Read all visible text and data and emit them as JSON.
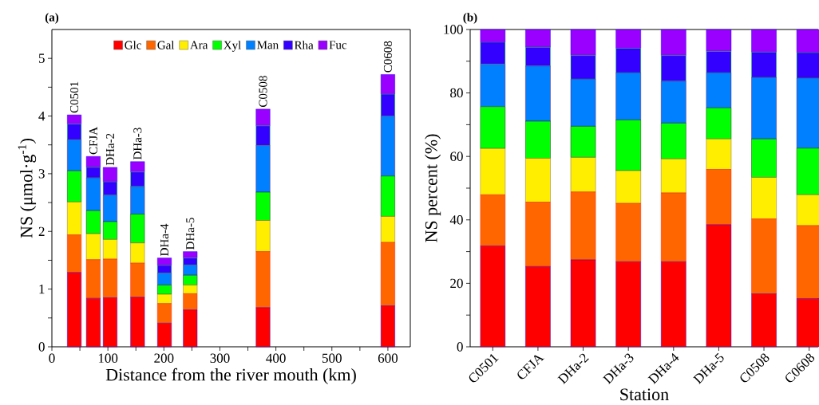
{
  "chart_data": [
    {
      "type": "bar",
      "title": "(a)",
      "xlabel": "Distance from the river mouth (km)",
      "ylabel": "NS (μmol·g$^{-1}$)",
      "stacked": true,
      "legend": "top",
      "x": [
        40,
        74,
        104,
        153,
        201,
        247,
        377,
        600
      ],
      "xlim": [
        0,
        640
      ],
      "xticks": [
        0,
        {
          "value": 50,
          "label": null
        },
        100,
        {
          "value": 150,
          "label": null
        },
        200,
        {
          "value": 250,
          "label": null
        },
        300,
        {
          "value": 350,
          "label": null
        },
        400,
        {
          "value": 450,
          "label": null
        },
        500,
        {
          "value": 550,
          "label": null
        },
        600
      ],
      "ylim": [
        0,
        5.5
      ],
      "yticks": [
        0,
        {
          "value": 0.5,
          "label": null
        },
        1,
        {
          "value": 1.5,
          "label": null
        },
        2,
        {
          "value": 2.5,
          "label": null
        },
        3,
        {
          "value": 3.5,
          "label": null
        },
        4,
        {
          "value": 4.5,
          "label": null
        },
        5
      ],
      "series": [
        {
          "name": "Glc",
          "color": "#ff0000",
          "values": [
            1.29,
            0.84,
            0.85,
            0.86,
            0.41,
            0.64,
            0.68,
            0.71
          ]
        },
        {
          "name": "Gal",
          "color": "#ff6600",
          "values": [
            0.65,
            0.67,
            0.67,
            0.59,
            0.34,
            0.28,
            0.97,
            1.1
          ]
        },
        {
          "name": "Ara",
          "color": "#ffee00",
          "values": [
            0.57,
            0.45,
            0.34,
            0.35,
            0.16,
            0.15,
            0.54,
            0.45
          ]
        },
        {
          "name": "Xyl",
          "color": "#00ff00",
          "values": [
            0.54,
            0.4,
            0.31,
            0.5,
            0.16,
            0.17,
            0.49,
            0.7
          ]
        },
        {
          "name": "Man",
          "color": "#0080ff",
          "values": [
            0.54,
            0.57,
            0.46,
            0.48,
            0.21,
            0.18,
            0.81,
            1.04
          ]
        },
        {
          "name": "Rha",
          "color": "#3300ff",
          "values": [
            0.27,
            0.18,
            0.23,
            0.25,
            0.13,
            0.12,
            0.34,
            0.38
          ]
        },
        {
          "name": "Fuc",
          "color": "#9900ff",
          "values": [
            0.16,
            0.19,
            0.25,
            0.18,
            0.13,
            0.11,
            0.29,
            0.34
          ]
        }
      ],
      "annotations": [
        {
          "text": "C0501",
          "x": 40,
          "y": 4.02
        },
        {
          "text": "CFJA",
          "x": 74,
          "y": 3.3
        },
        {
          "text": "DHa-2",
          "x": 104,
          "y": 3.11
        },
        {
          "text": "DHa-3",
          "x": 153,
          "y": 3.21
        },
        {
          "text": "DHa-4",
          "x": 201,
          "y": 1.54
        },
        {
          "text": "DHa-5",
          "x": 247,
          "y": 1.65
        },
        {
          "text": "C0508",
          "x": 377,
          "y": 4.12
        },
        {
          "text": "C0608",
          "x": 600,
          "y": 4.72
        }
      ]
    },
    {
      "type": "bar",
      "title": "(b)",
      "xlabel": "Station",
      "ylabel": "NS percent (%)",
      "stacked": true,
      "categories": [
        "C0501",
        "CFJA",
        "DHa-2",
        "DHa-3",
        "DHa-4",
        "DHa-5",
        "C0508",
        "C0608"
      ],
      "ylim": [
        0,
        100
      ],
      "yticks": [
        0,
        {
          "value": 10,
          "label": null
        },
        20,
        {
          "value": 30,
          "label": null
        },
        40,
        {
          "value": 50,
          "label": null
        },
        60,
        {
          "value": 70,
          "label": null
        },
        80,
        {
          "value": 90,
          "label": null
        },
        100
      ],
      "series": [
        {
          "color": "#ff0000",
          "values": [
            31.8,
            25.3,
            27.4,
            26.8,
            26.8,
            38.5,
            16.7,
            15.2
          ]
        },
        {
          "color": "#ff6600",
          "values": [
            16.1,
            20.3,
            21.4,
            18.4,
            21.7,
            17.4,
            23.6,
            23.0
          ]
        },
        {
          "color": "#ffee00",
          "values": [
            14.6,
            13.8,
            10.9,
            10.3,
            10.7,
            9.6,
            13.1,
            9.7
          ]
        },
        {
          "color": "#00ff00",
          "values": [
            13.2,
            11.7,
            9.8,
            16.0,
            11.3,
            9.8,
            12.1,
            14.7
          ]
        },
        {
          "color": "#0080ff",
          "values": [
            13.4,
            17.4,
            14.9,
            14.9,
            13.2,
            11.1,
            19.4,
            22.1
          ]
        },
        {
          "color": "#3300ff",
          "values": [
            6.9,
            5.9,
            7.4,
            7.7,
            8.1,
            6.7,
            8.0,
            8.0
          ]
        },
        {
          "color": "#9900ff",
          "values": [
            4.0,
            5.6,
            8.2,
            5.9,
            8.2,
            6.9,
            7.1,
            7.3
          ]
        }
      ]
    }
  ]
}
